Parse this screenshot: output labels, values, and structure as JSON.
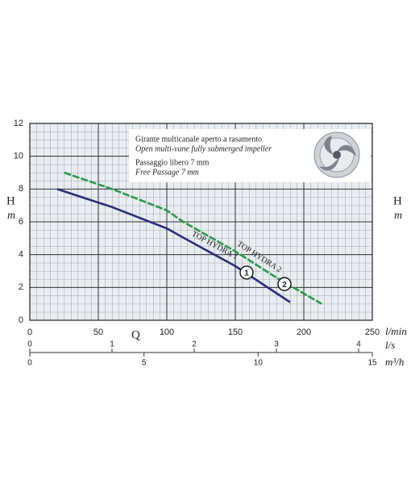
{
  "chart_data": {
    "type": "line",
    "y_label": "H",
    "y_unit": "m",
    "x_label": "Q",
    "x_unit": "l/min",
    "x2_unit": "l/s",
    "x3_unit": "m³/h",
    "xlim": [
      0,
      250
    ],
    "xticks": [
      0,
      50,
      100,
      150,
      200,
      250
    ],
    "x2lim": [
      0,
      4.1667
    ],
    "x2ticks": [
      0,
      1,
      2,
      3,
      4
    ],
    "x3lim": [
      0,
      15
    ],
    "x3ticks": [
      0,
      5,
      10,
      15
    ],
    "ylim": [
      0,
      12
    ],
    "yticks": [
      0,
      2,
      4,
      6,
      8,
      10,
      12
    ],
    "grid": true,
    "annotations": [
      "Girante multicanale aperto a rasamento",
      "Open multi-vane fully submerged impeller",
      "Passaggio libero 7 mm",
      "Free Passage 7 mm"
    ],
    "series": [
      {
        "name": "TOP HYDRA 1",
        "marker_label": "1",
        "color": "#2b2d7c",
        "x": [
          20,
          60,
          100,
          115,
          150,
          190
        ],
        "values": [
          8,
          6.9,
          5.6,
          4.9,
          3.3,
          1.1
        ]
      },
      {
        "name": "TOP HYDRA 2",
        "marker_label": "2",
        "color": "#2a9a4a",
        "x": [
          25,
          60,
          100,
          112,
          150,
          180,
          213
        ],
        "values": [
          9,
          8,
          6.7,
          6,
          4.2,
          2.6,
          1
        ]
      }
    ]
  }
}
